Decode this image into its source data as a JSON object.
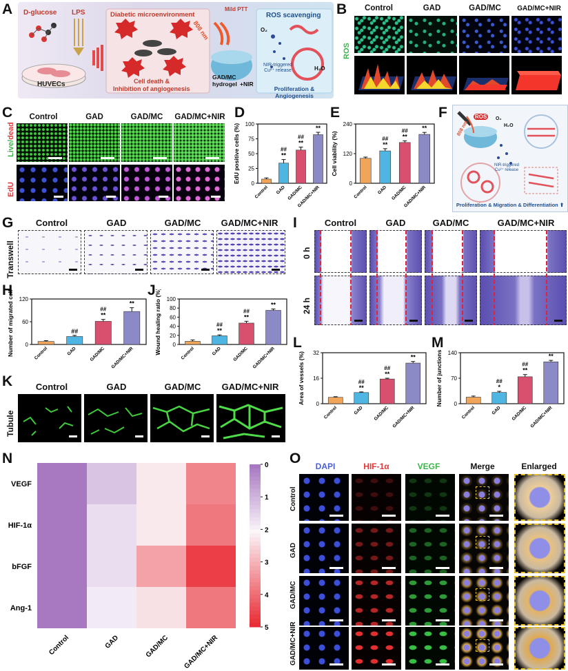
{
  "panel_letters": [
    "A",
    "B",
    "C",
    "D",
    "E",
    "F",
    "G",
    "H",
    "I",
    "J",
    "K",
    "L",
    "M",
    "N",
    "O"
  ],
  "schematic_A": {
    "d_glucose": "D-glucose",
    "lps": "LPS",
    "huvecs": "HUVECs",
    "diabetic": "Diabetic microenvironment",
    "ros": "ROS",
    "cell_death": "Cell death &",
    "inhibition": "Inhibition of angiogenesis",
    "mild_ptt": "Mild PTT",
    "nm808": "808 nm",
    "hydrogel": "GAD/MC",
    "hydrogel2": "hydrogel",
    "nir_plus": "+NIR",
    "ros_scav": "ROS scavenging",
    "nir_release": "NIR-triggered",
    "cu_release": "Cu²⁺ release",
    "prolif": "Proliferation & Angiogenesis",
    "o2": "O₂",
    "h2o": "H₂O"
  },
  "groups": [
    "Control",
    "GAD",
    "GAD/MC",
    "GAD/MC+NIR"
  ],
  "row_labels": {
    "ros": "ROS",
    "live": "Live/",
    "dead": "dead",
    "edu": "EdU",
    "transwell": "Transwell",
    "t0": "0 h",
    "t24": "24 h",
    "tubule": "Tubule"
  },
  "schematic_F": {
    "nm808": "808 nm",
    "ros": "ROS",
    "o2": "O₂",
    "h2o": "H₂O",
    "nir": "NIR-triggered",
    "cu": "Cu²⁺ release",
    "bottom": "Proliferation & Migration & Differentiation ⬆"
  },
  "colors": {
    "control": "#f0a55a",
    "gad": "#4fb6e3",
    "gadmc": "#d94f6e",
    "gadmcnir": "#8b89c6",
    "heat_high": "#e8232c",
    "heat_low": "#a879c1"
  },
  "chart_data": [
    {
      "id": "D",
      "type": "bar",
      "ylabel": "EdU positive cells (%)",
      "ylim": [
        0,
        100
      ],
      "yticks": [
        "0",
        "25",
        "50",
        "75",
        "100"
      ],
      "categories": [
        "Control",
        "GAD",
        "GAD/MC",
        "GAD/MC+NIR"
      ],
      "values": [
        7,
        34,
        56,
        82
      ],
      "errors": [
        2,
        6,
        5,
        4
      ],
      "annotations": [
        [
          "",
          ""
        ],
        [
          "##",
          "**"
        ],
        [
          "##",
          "**"
        ],
        [
          "",
          "**"
        ]
      ]
    },
    {
      "id": "E",
      "type": "bar",
      "ylabel": "Cell viability (%)",
      "ylim": [
        0,
        240
      ],
      "yticks": [
        "0",
        "120",
        "240"
      ],
      "categories": [
        "Control",
        "GAD",
        "GAD/MC",
        "GAD/MC+NIR"
      ],
      "values": [
        101,
        131,
        165,
        198
      ],
      "errors": [
        5,
        9,
        7,
        8
      ],
      "annotations": [
        [
          "",
          ""
        ],
        [
          "##",
          "**"
        ],
        [
          "##",
          "**"
        ],
        [
          "",
          "**"
        ]
      ]
    },
    {
      "id": "H",
      "type": "bar",
      "ylabel": "Number of migrated cells",
      "ylim": [
        0,
        120
      ],
      "yticks": [
        "0",
        "60",
        "120"
      ],
      "categories": [
        "Control",
        "GAD",
        "GAD/MC",
        "GAD/MC+NIR"
      ],
      "values": [
        8,
        21,
        61,
        87
      ],
      "errors": [
        2,
        3,
        5,
        10
      ],
      "annotations": [
        [
          "",
          ""
        ],
        [
          "",
          "##"
        ],
        [
          "##",
          "**"
        ],
        [
          "",
          "**"
        ]
      ]
    },
    {
      "id": "J",
      "type": "bar",
      "ylabel": "Wound healing ratio (%)",
      "ylim": [
        0,
        100
      ],
      "yticks": [
        "0",
        "20",
        "40",
        "60",
        "80",
        "100"
      ],
      "categories": [
        "Control",
        "GAD",
        "GAD/MC",
        "GAD/MC+NIR"
      ],
      "values": [
        7,
        19,
        47,
        75
      ],
      "errors": [
        3,
        2,
        4,
        3
      ],
      "annotations": [
        [
          "",
          ""
        ],
        [
          "##",
          "**"
        ],
        [
          "##",
          "**"
        ],
        [
          "",
          "**"
        ]
      ]
    },
    {
      "id": "L",
      "type": "bar",
      "ylabel": "Area of vessels (%)",
      "ylim": [
        0,
        32
      ],
      "yticks": [
        "0",
        "16",
        "32"
      ],
      "categories": [
        "Control",
        "GAD",
        "GAD/MC",
        "GAD/MC+NIR"
      ],
      "values": [
        4,
        7,
        15.5,
        25.5
      ],
      "errors": [
        0.4,
        0.4,
        0.5,
        1.0
      ],
      "annotations": [
        [
          "",
          ""
        ],
        [
          "##",
          "**"
        ],
        [
          "##",
          "**"
        ],
        [
          "",
          "**"
        ]
      ]
    },
    {
      "id": "M",
      "type": "bar",
      "ylabel": "Number of junctions",
      "ylim": [
        0,
        140
      ],
      "yticks": [
        "0",
        "70",
        "140"
      ],
      "categories": [
        "Control",
        "GAD",
        "GAD/MC",
        "GAD/MC+NIR"
      ],
      "values": [
        18,
        31,
        74,
        115
      ],
      "errors": [
        3,
        3,
        6,
        4
      ],
      "annotations": [
        [
          "",
          ""
        ],
        [
          "##",
          "*"
        ],
        [
          "##",
          "**"
        ],
        [
          "",
          "**"
        ]
      ]
    },
    {
      "id": "N",
      "type": "heatmap",
      "rows": [
        "VEGF",
        "HIF-1α",
        "bFGF",
        "Ang-1"
      ],
      "columns": [
        "Control",
        "GAD",
        "GAD/MC",
        "GAD/MC+NIR"
      ],
      "values": [
        [
          0,
          1.2,
          2.2,
          3.6
        ],
        [
          0,
          1.6,
          2.2,
          3.8
        ],
        [
          0,
          1.6,
          3.2,
          4.6
        ],
        [
          0,
          1.8,
          2.3,
          3.8
        ]
      ],
      "scale": [
        0,
        5
      ],
      "colorbar_ticks": [
        "0",
        "1",
        "2",
        "3",
        "4",
        "5"
      ]
    }
  ],
  "panel_O": {
    "cols": [
      "DAPI",
      "HIF-1α",
      "VEGF",
      "Merge",
      "Enlarged"
    ],
    "col_colors": [
      "#4a5ed8",
      "#e03a3a",
      "#3bb54a",
      "#222222",
      "#222222"
    ]
  }
}
